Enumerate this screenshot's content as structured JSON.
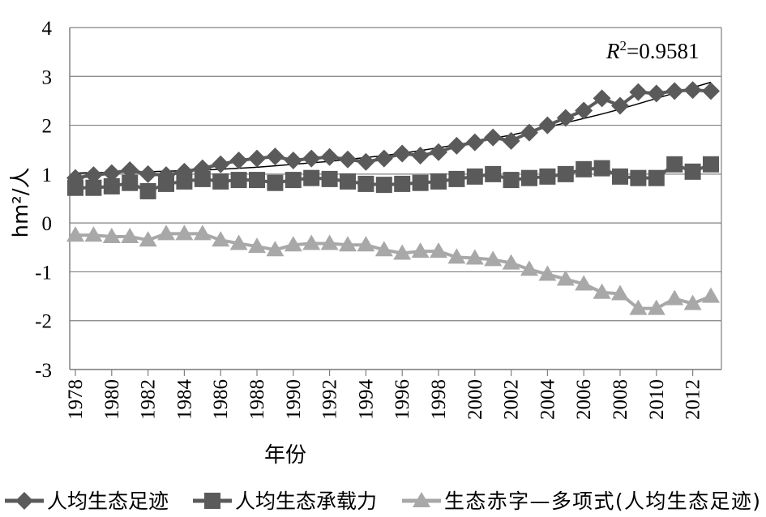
{
  "chart_data": {
    "type": "line",
    "xlabel": "年份",
    "ylabel": "hm²/人",
    "ylim": [
      -3,
      4
    ],
    "xlim": [
      1978,
      2013
    ],
    "yticks": [
      "-3",
      "-2",
      "-1",
      "0",
      "1",
      "2",
      "3",
      "4"
    ],
    "xticks": [
      "1978",
      "1980",
      "1982",
      "1984",
      "1986",
      "1988",
      "1990",
      "1992",
      "1994",
      "1996",
      "1998",
      "2000",
      "2002",
      "2004",
      "2006",
      "2008",
      "2010",
      "2012"
    ],
    "grid": "horizontal",
    "legend_position": "bottom",
    "annotation": {
      "italic": "R",
      "sup": "2",
      "rest": "=0.9581"
    },
    "x": [
      1978,
      1979,
      1980,
      1981,
      1982,
      1983,
      1984,
      1985,
      1986,
      1987,
      1988,
      1989,
      1990,
      1991,
      1992,
      1993,
      1994,
      1995,
      1996,
      1997,
      1998,
      1999,
      2000,
      2001,
      2002,
      2003,
      2004,
      2005,
      2006,
      2007,
      2008,
      2009,
      2010,
      2011,
      2012,
      2013
    ],
    "series": [
      {
        "name": "人均生态足迹",
        "marker": "diamond",
        "color": "#5a5a5a",
        "values": [
          0.92,
          0.98,
          1.02,
          1.08,
          1.0,
          0.98,
          1.05,
          1.12,
          1.2,
          1.28,
          1.32,
          1.36,
          1.28,
          1.32,
          1.35,
          1.3,
          1.25,
          1.32,
          1.42,
          1.38,
          1.45,
          1.58,
          1.65,
          1.75,
          1.68,
          1.85,
          2.0,
          2.15,
          2.3,
          2.55,
          2.4,
          2.68,
          2.65,
          2.7,
          2.72,
          2.7
        ]
      },
      {
        "name": "人均生态承载力",
        "marker": "square",
        "color": "#5a5a5a",
        "values": [
          0.72,
          0.72,
          0.75,
          0.82,
          0.65,
          0.8,
          0.85,
          0.9,
          0.85,
          0.88,
          0.88,
          0.82,
          0.88,
          0.92,
          0.9,
          0.85,
          0.8,
          0.78,
          0.8,
          0.82,
          0.85,
          0.9,
          0.95,
          1.0,
          0.88,
          0.92,
          0.95,
          1.0,
          1.1,
          1.12,
          0.95,
          0.92,
          0.92,
          1.2,
          1.05,
          1.2
        ]
      },
      {
        "name": "生态赤字",
        "marker": "triangle",
        "color": "#a8a8a8",
        "values": [
          -0.25,
          -0.25,
          -0.28,
          -0.28,
          -0.35,
          -0.22,
          -0.22,
          -0.22,
          -0.35,
          -0.42,
          -0.48,
          -0.55,
          -0.45,
          -0.42,
          -0.42,
          -0.45,
          -0.45,
          -0.55,
          -0.62,
          -0.58,
          -0.58,
          -0.7,
          -0.72,
          -0.75,
          -0.82,
          -0.95,
          -1.05,
          -1.15,
          -1.25,
          -1.42,
          -1.45,
          -1.75,
          -1.75,
          -1.55,
          -1.65,
          -1.5
        ]
      }
    ],
    "trendline": {
      "name": "多项式(人均生态足迹)",
      "color": "#000000",
      "values": [
        1.02,
        1.03,
        1.03,
        1.04,
        1.05,
        1.06,
        1.07,
        1.08,
        1.1,
        1.12,
        1.14,
        1.17,
        1.2,
        1.23,
        1.26,
        1.3,
        1.34,
        1.38,
        1.43,
        1.48,
        1.54,
        1.6,
        1.66,
        1.73,
        1.8,
        1.88,
        1.96,
        2.05,
        2.14,
        2.23,
        2.33,
        2.44,
        2.55,
        2.66,
        2.77,
        2.88
      ]
    },
    "legend": [
      "人均生态足迹",
      "人均生态承载力",
      "生态赤字—多项式(人均生态足迹)"
    ]
  }
}
